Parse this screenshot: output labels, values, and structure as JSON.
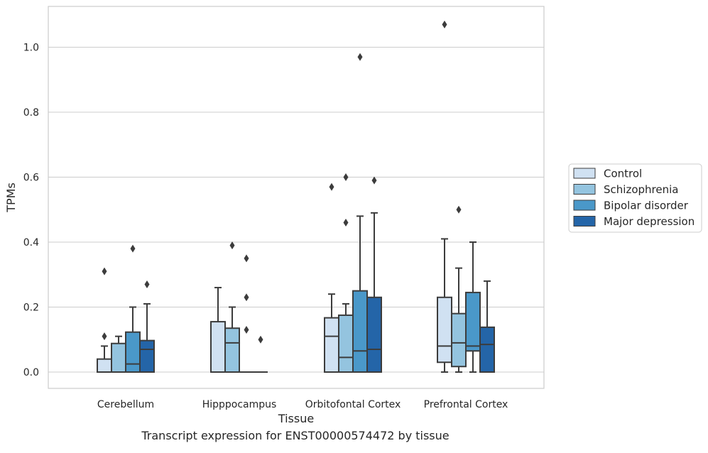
{
  "caption": "Transcript expression for ENST00000574472 by tissue",
  "chart_data": {
    "type": "box",
    "xlabel": "Tissue",
    "ylabel": "TPMs",
    "ylim": [
      -0.05,
      1.13
    ],
    "yticks": [
      0.0,
      0.2,
      0.4,
      0.6,
      0.8,
      1.0
    ],
    "ytick_labels": [
      "0.0",
      "0.2",
      "0.4",
      "0.6",
      "0.8",
      "1.0"
    ],
    "grid": "horizontal",
    "legend_position": "right",
    "categories": [
      "Cerebellum",
      "Hipppocampus",
      "Orbitofontal Cortex",
      "Prefrontal Cortex"
    ],
    "series": [
      {
        "name": "Control",
        "color": "#d0e1f2",
        "boxes": [
          {
            "whislo": 0.0,
            "q1": 0.0,
            "med": 0.0,
            "q3": 0.04,
            "whishi": 0.08,
            "fliers": [
              0.11,
              0.31
            ]
          },
          {
            "whislo": 0.0,
            "q1": 0.0,
            "med": 0.0,
            "q3": 0.155,
            "whishi": 0.26,
            "fliers": []
          },
          {
            "whislo": 0.0,
            "q1": 0.0,
            "med": 0.11,
            "q3": 0.167,
            "whishi": 0.24,
            "fliers": [
              0.57
            ]
          },
          {
            "whislo": 0.0,
            "q1": 0.03,
            "med": 0.08,
            "q3": 0.23,
            "whishi": 0.41,
            "fliers": [
              1.07
            ]
          }
        ]
      },
      {
        "name": "Schizophrenia",
        "color": "#94c4df",
        "boxes": [
          {
            "whislo": 0.0,
            "q1": 0.0,
            "med": 0.0,
            "q3": 0.088,
            "whishi": 0.11,
            "fliers": []
          },
          {
            "whislo": 0.0,
            "q1": 0.0,
            "med": 0.09,
            "q3": 0.135,
            "whishi": 0.2,
            "fliers": [
              0.39
            ]
          },
          {
            "whislo": 0.0,
            "q1": 0.0,
            "med": 0.045,
            "q3": 0.175,
            "whishi": 0.21,
            "fliers": [
              0.46,
              0.6
            ]
          },
          {
            "whislo": 0.0,
            "q1": 0.017,
            "med": 0.09,
            "q3": 0.18,
            "whishi": 0.32,
            "fliers": [
              0.5
            ]
          }
        ]
      },
      {
        "name": "Bipolar disorder",
        "color": "#4a98c9",
        "boxes": [
          {
            "whislo": 0.0,
            "q1": 0.0,
            "med": 0.025,
            "q3": 0.123,
            "whishi": 0.2,
            "fliers": [
              0.38
            ]
          },
          {
            "whislo": 0.0,
            "q1": 0.0,
            "med": 0.0,
            "q3": 0.0,
            "whishi": 0.0,
            "fliers": [
              0.13,
              0.23,
              0.35
            ]
          },
          {
            "whislo": 0.0,
            "q1": 0.0,
            "med": 0.065,
            "q3": 0.25,
            "whishi": 0.48,
            "fliers": [
              0.97
            ]
          },
          {
            "whislo": 0.0,
            "q1": 0.065,
            "med": 0.08,
            "q3": 0.245,
            "whishi": 0.4,
            "fliers": []
          }
        ]
      },
      {
        "name": "Major depression",
        "color": "#2465a8",
        "boxes": [
          {
            "whislo": 0.0,
            "q1": 0.0,
            "med": 0.07,
            "q3": 0.097,
            "whishi": 0.21,
            "fliers": [
              0.27
            ]
          },
          {
            "whislo": 0.0,
            "q1": 0.0,
            "med": 0.0,
            "q3": 0.0,
            "whishi": 0.0,
            "fliers": [
              0.1
            ]
          },
          {
            "whislo": 0.0,
            "q1": 0.0,
            "med": 0.07,
            "q3": 0.23,
            "whishi": 0.49,
            "fliers": [
              0.59
            ]
          },
          {
            "whislo": 0.0,
            "q1": 0.0,
            "med": 0.085,
            "q3": 0.138,
            "whishi": 0.28,
            "fliers": []
          }
        ]
      }
    ]
  }
}
